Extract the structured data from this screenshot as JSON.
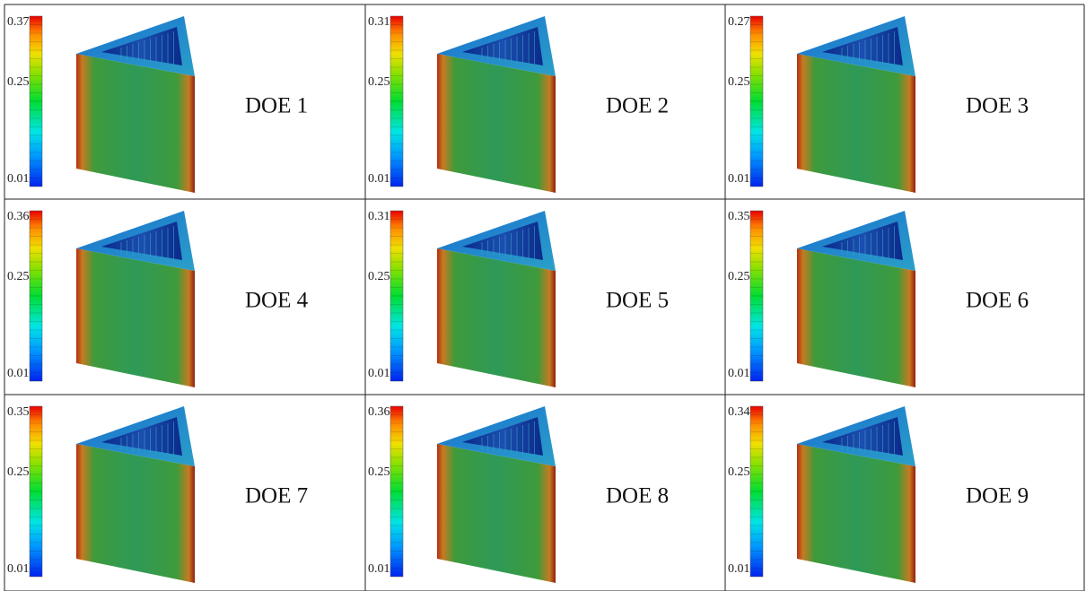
{
  "cells": [
    {
      "label": "DOE 1",
      "scale": {
        "max": "0.37",
        "mid": "0.25",
        "min": "0.01"
      }
    },
    {
      "label": "DOE 2",
      "scale": {
        "max": "0.31",
        "mid": "0.25",
        "min": "0.01"
      }
    },
    {
      "label": "DOE 3",
      "scale": {
        "max": "0.27",
        "mid": "0.25",
        "min": "0.01"
      }
    },
    {
      "label": "DOE 4",
      "scale": {
        "max": "0.36",
        "mid": "0.25",
        "min": "0.01"
      }
    },
    {
      "label": "DOE 5",
      "scale": {
        "max": "0.31",
        "mid": "0.25",
        "min": "0.01"
      }
    },
    {
      "label": "DOE 6",
      "scale": {
        "max": "0.35",
        "mid": "0.25",
        "min": "0.01"
      }
    },
    {
      "label": "DOE 7",
      "scale": {
        "max": "0.35",
        "mid": "0.25",
        "min": "0.01"
      }
    },
    {
      "label": "DOE 8",
      "scale": {
        "max": "0.36",
        "mid": "0.25",
        "min": "0.01"
      }
    },
    {
      "label": "DOE 9",
      "scale": {
        "max": "0.34",
        "mid": "0.25",
        "min": "0.01"
      }
    }
  ]
}
